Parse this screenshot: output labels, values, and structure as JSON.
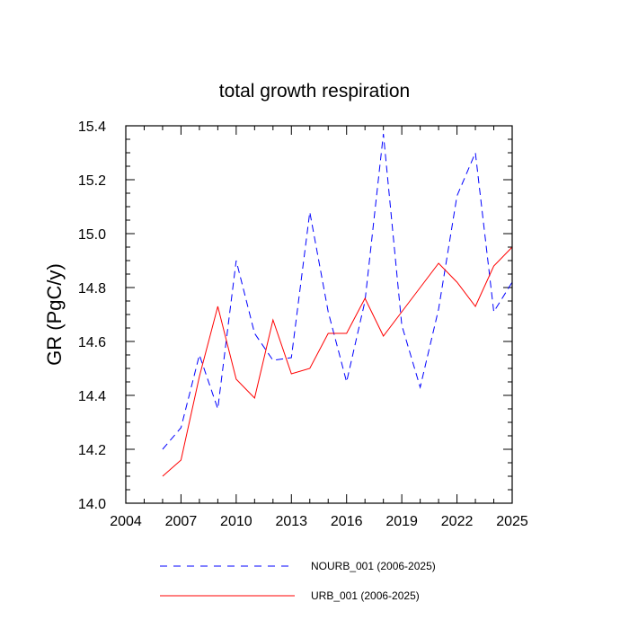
{
  "chart_data": {
    "type": "line",
    "title": "total growth respiration",
    "xlabel": "",
    "ylabel": "GR  (PgC/y)",
    "xlim": [
      2004,
      2025
    ],
    "ylim": [
      14.0,
      15.4
    ],
    "xticks": [
      2004,
      2007,
      2010,
      2013,
      2016,
      2019,
      2022,
      2025
    ],
    "yticks": [
      "14.0",
      "14.2",
      "14.4",
      "14.6",
      "14.8",
      "15.0",
      "15.2",
      "15.4"
    ],
    "x": [
      2006,
      2007,
      2008,
      2009,
      2010,
      2011,
      2012,
      2013,
      2014,
      2015,
      2016,
      2017,
      2018,
      2019,
      2020,
      2021,
      2022,
      2023,
      2024,
      2025
    ],
    "series": [
      {
        "name": "NOURB_001 (2006-2025)",
        "color": "#0000ff",
        "dash": "dashed",
        "values": [
          14.2,
          14.28,
          14.55,
          14.35,
          14.9,
          14.63,
          14.53,
          14.54,
          15.08,
          14.71,
          14.45,
          14.75,
          15.37,
          14.66,
          14.43,
          14.72,
          15.14,
          15.3,
          14.71,
          14.82
        ]
      },
      {
        "name": "URB_001 (2006-2025)",
        "color": "#ff0000",
        "dash": "solid",
        "values": [
          14.1,
          14.16,
          14.47,
          14.73,
          14.46,
          14.39,
          14.68,
          14.48,
          14.5,
          14.63,
          14.63,
          14.76,
          14.62,
          14.71,
          14.8,
          14.89,
          14.82,
          14.73,
          14.88,
          14.95
        ]
      }
    ],
    "legend_position": "bottom"
  }
}
